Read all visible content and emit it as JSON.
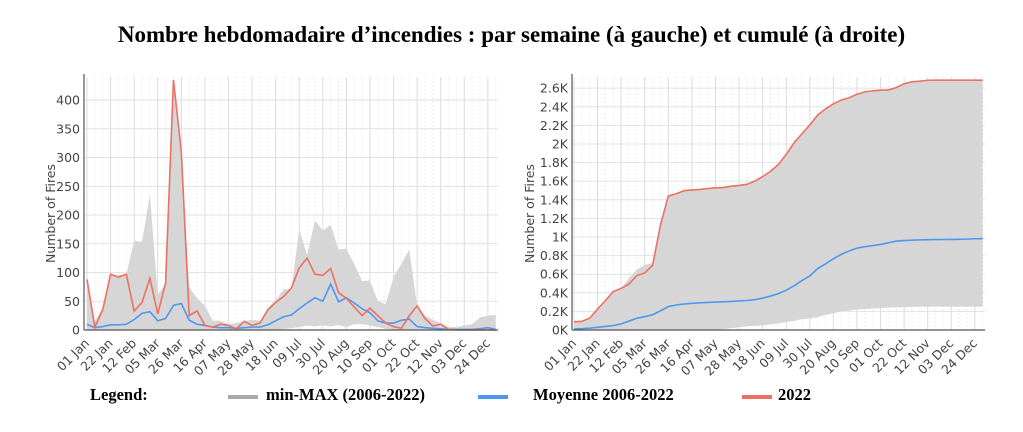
{
  "title": "Nombre hebdomadaire d’incendies : par semaine (à gauche) et cumulé (à droite)",
  "legend": {
    "label": "Legend:",
    "items": [
      {
        "name": "min-MAX (2006-2022)",
        "color": "#aaaaaa"
      },
      {
        "name": "Moyenne 2006-2022",
        "color": "#4f97f0"
      },
      {
        "name": "2022",
        "color": "#ec7163"
      }
    ]
  },
  "chart_data": [
    {
      "type": "line",
      "title": "par semaine",
      "ylabel": "Number of Fires",
      "xlabel": "",
      "ylim": [
        0,
        440
      ],
      "yticks": [
        0,
        50,
        100,
        150,
        200,
        250,
        300,
        350,
        400
      ],
      "ytick_labels": [
        "0",
        "50",
        "100",
        "150",
        "200",
        "250",
        "300",
        "350",
        "400"
      ],
      "xtick_labels": [
        "01 Jan",
        "22 Jan",
        "12 Feb",
        "05 Mar",
        "26 Mar",
        "16 Apr",
        "07 May",
        "28 May",
        "18 Jun",
        "09 Jul",
        "30 Jul",
        "20 Aug",
        "10 Sep",
        "01 Oct",
        "22 Oct",
        "12 Nov",
        "03 Dec",
        "24 Dec"
      ],
      "x_unit": "week (0-52), tick every 3 weeks",
      "grid": true,
      "series": [
        {
          "name": "min-MAX (2006-2022)",
          "kind": "band",
          "min": [
            0,
            0,
            0,
            0,
            0,
            0,
            0,
            0,
            0,
            0,
            0,
            0,
            0,
            0,
            0,
            0,
            0,
            0,
            0,
            0,
            0,
            0,
            0,
            0,
            0,
            2,
            3,
            5,
            8,
            6,
            8,
            6,
            9,
            5,
            10,
            10,
            8,
            5,
            2,
            1,
            0,
            0,
            0,
            0,
            0,
            0,
            0,
            0,
            0,
            0,
            0,
            0,
            0
          ],
          "max": [
            88,
            15,
            40,
            95,
            95,
            97,
            155,
            153,
            235,
            62,
            80,
            435,
            310,
            75,
            55,
            42,
            16,
            16,
            10,
            12,
            15,
            18,
            16,
            38,
            52,
            70,
            72,
            175,
            130,
            190,
            173,
            183,
            140,
            141,
            115,
            85,
            86,
            50,
            45,
            92,
            115,
            140,
            42,
            25,
            18,
            12,
            5,
            5,
            8,
            10,
            22,
            25,
            26
          ]
        },
        {
          "name": "Moyenne 2006-2022",
          "kind": "line",
          "values": [
            10,
            4,
            6,
            9,
            9,
            10,
            18,
            29,
            32,
            16,
            20,
            43,
            46,
            17,
            10,
            8,
            5,
            4,
            4,
            3,
            4,
            5,
            5,
            9,
            16,
            23,
            26,
            37,
            47,
            56,
            50,
            80,
            49,
            56,
            47,
            37,
            30,
            16,
            12,
            12,
            17,
            19,
            6,
            4,
            3,
            2,
            1,
            1,
            1,
            1,
            2,
            4,
            1
          ]
        },
        {
          "name": "2022",
          "kind": "line",
          "values": [
            88,
            5,
            35,
            97,
            92,
            97,
            33,
            48,
            90,
            28,
            82,
            435,
            310,
            25,
            33,
            8,
            5,
            10,
            8,
            2,
            15,
            8,
            12,
            35,
            48,
            58,
            73,
            108,
            125,
            97,
            95,
            107,
            65,
            55,
            40,
            25,
            38,
            25,
            12,
            6,
            3,
            25,
            42,
            20,
            7,
            10,
            1,
            0,
            0,
            0,
            0,
            0,
            0
          ]
        }
      ]
    },
    {
      "type": "line",
      "title": "cumulé",
      "ylabel": "Number of Fires",
      "xlabel": "",
      "ylim": [
        0,
        2720
      ],
      "yticks": [
        0,
        200,
        400,
        600,
        800,
        1000,
        1200,
        1400,
        1600,
        1800,
        2000,
        2200,
        2400,
        2600
      ],
      "ytick_labels": [
        "0K",
        "0.2K",
        "0.4K",
        "0.6K",
        "0.8K",
        "1K",
        "1.2K",
        "1.4K",
        "1.6K",
        "1.8K",
        "2K",
        "2.2K",
        "2.4K",
        "2.6K"
      ],
      "xtick_labels": [
        "01 Jan",
        "22 Jan",
        "12 Feb",
        "05 Mar",
        "26 Mar",
        "16 Apr",
        "07 May",
        "28 May",
        "18 Jun",
        "09 Jul",
        "30 Jul",
        "20 Aug",
        "10 Sep",
        "01 Oct",
        "22 Oct",
        "12 Nov",
        "03 Dec",
        "24 Dec"
      ],
      "x_unit": "week (0-52), tick every 3 weeks",
      "grid": true,
      "series": [
        {
          "name": "min-MAX (2006-2022)",
          "kind": "band",
          "min": [
            0,
            0,
            0,
            0,
            0,
            0,
            0,
            0,
            0,
            0,
            0,
            0,
            0,
            0,
            0,
            0,
            0,
            0,
            0,
            10,
            20,
            30,
            40,
            45,
            50,
            60,
            70,
            85,
            100,
            115,
            125,
            140,
            160,
            180,
            200,
            210,
            220,
            225,
            230,
            235,
            240,
            242,
            245,
            248,
            250,
            250,
            250,
            250,
            250,
            250,
            250,
            250,
            250
          ],
          "max": [
            88,
            93,
            128,
            225,
            317,
            414,
            447,
            560,
            650,
            700,
            720,
            1130,
            1440,
            1465,
            1498,
            1506,
            1511,
            1521,
            1529,
            1531,
            1546,
            1554,
            1566,
            1601,
            1649,
            1707,
            1780,
            1888,
            2013,
            2110,
            2205,
            2312,
            2377,
            2432,
            2472,
            2497,
            2535,
            2560,
            2572,
            2578,
            2581,
            2606,
            2648,
            2668,
            2675,
            2685,
            2686,
            2686,
            2686,
            2686,
            2686,
            2686,
            2686
          ]
        },
        {
          "name": "Moyenne 2006-2022",
          "kind": "line",
          "cumulative_of": 0
        },
        {
          "name": "2022",
          "kind": "line",
          "cumulative_of": 0
        }
      ]
    }
  ]
}
